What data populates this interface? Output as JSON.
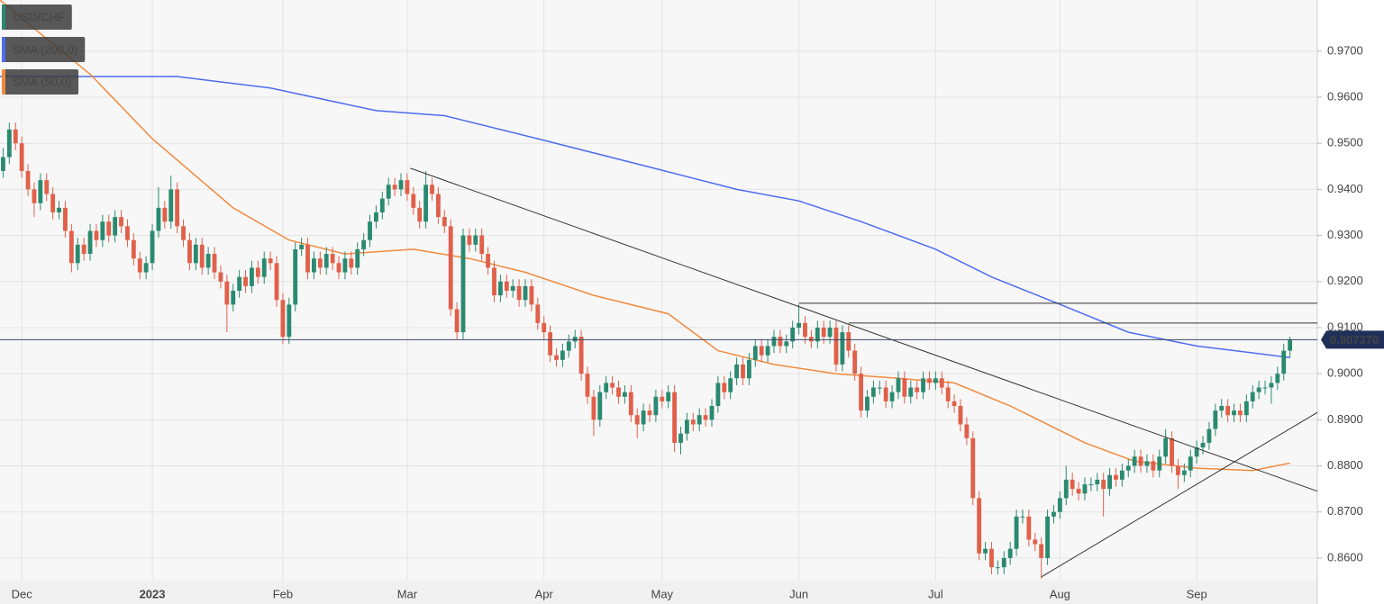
{
  "chart_data": {
    "type": "candlestick",
    "series": [
      {
        "name": "USD/CHF",
        "type": "candlestick",
        "color": "#2a8a70",
        "down_color": "#e0604a",
        "open": [
          0.944,
          0.947,
          0.953,
          0.95,
          0.944,
          0.94,
          0.937,
          0.942,
          0.939,
          0.935,
          0.936,
          0.931,
          0.924,
          0.928,
          0.926,
          0.931,
          0.929,
          0.933,
          0.93,
          0.934,
          0.932,
          0.929,
          0.925,
          0.922,
          0.924,
          0.931,
          0.936,
          0.933,
          0.94,
          0.932,
          0.929,
          0.924,
          0.928,
          0.923,
          0.926,
          0.922,
          0.92,
          0.915,
          0.918,
          0.921,
          0.919,
          0.923,
          0.921,
          0.925,
          0.924,
          0.916,
          0.908,
          0.915,
          0.927,
          0.928,
          0.922,
          0.925,
          0.923,
          0.926,
          0.924,
          0.922,
          0.925,
          0.923,
          0.927,
          0.929,
          0.933,
          0.935,
          0.938,
          0.941,
          0.94,
          0.942,
          0.939,
          0.936,
          0.933,
          0.941,
          0.939,
          0.934,
          0.932,
          0.914,
          0.909,
          0.93,
          0.928,
          0.93,
          0.926,
          0.923,
          0.917,
          0.92,
          0.918,
          0.919,
          0.916,
          0.919,
          0.915,
          0.911,
          0.909,
          0.904,
          0.903,
          0.905,
          0.907,
          0.908,
          0.9,
          0.895,
          0.89,
          0.896,
          0.898,
          0.897,
          0.895,
          0.896,
          0.891,
          0.889,
          0.892,
          0.891,
          0.895,
          0.894,
          0.896,
          0.885,
          0.887,
          0.89,
          0.889,
          0.891,
          0.89,
          0.893,
          0.898,
          0.896,
          0.899,
          0.902,
          0.899,
          0.903,
          0.906,
          0.904,
          0.906,
          0.908,
          0.906,
          0.907,
          0.91,
          0.911,
          0.908,
          0.907,
          0.91,
          0.908,
          0.91,
          0.902,
          0.909,
          0.905,
          0.9,
          0.892,
          0.895,
          0.897,
          0.897,
          0.894,
          0.896,
          0.899,
          0.895,
          0.897,
          0.896,
          0.899,
          0.898,
          0.899,
          0.897,
          0.894,
          0.893,
          0.889,
          0.886,
          0.873,
          0.861,
          0.862,
          0.858,
          0.858,
          0.86,
          0.862,
          0.869,
          0.869,
          0.864,
          0.863,
          0.86,
          0.869,
          0.87,
          0.873,
          0.877,
          0.875,
          0.874,
          0.876,
          0.876,
          0.877,
          0.875,
          0.878,
          0.877,
          0.879,
          0.88,
          0.882,
          0.88,
          0.881,
          0.879,
          0.882,
          0.886,
          0.88,
          0.878,
          0.879,
          0.882,
          0.884,
          0.885,
          0.888,
          0.892,
          0.893,
          0.891,
          0.892,
          0.891,
          0.894,
          0.896,
          0.897,
          0.897,
          0.898,
          0.9,
          0.905
        ],
        "high": [
          0.949,
          0.9545,
          0.9545,
          0.9515,
          0.9455,
          0.9415,
          0.9435,
          0.9435,
          0.9405,
          0.9375,
          0.9375,
          0.9325,
          0.9295,
          0.9295,
          0.9325,
          0.9325,
          0.9345,
          0.9345,
          0.9355,
          0.9355,
          0.9335,
          0.9305,
          0.9265,
          0.9255,
          0.9325,
          0.9405,
          0.9375,
          0.943,
          0.9415,
          0.9335,
          0.9305,
          0.9295,
          0.9295,
          0.9275,
          0.9275,
          0.9235,
          0.9215,
          0.9195,
          0.9225,
          0.9225,
          0.9245,
          0.9245,
          0.9265,
          0.9265,
          0.9255,
          0.9175,
          0.9165,
          0.9285,
          0.9295,
          0.9295,
          0.9265,
          0.9265,
          0.9275,
          0.9275,
          0.9255,
          0.9265,
          0.9265,
          0.9285,
          0.9305,
          0.9345,
          0.9365,
          0.9395,
          0.9425,
          0.9425,
          0.9435,
          0.9435,
          0.9405,
          0.9375,
          0.944,
          0.9425,
          0.9405,
          0.9355,
          0.9335,
          0.9155,
          0.9315,
          0.9315,
          0.9315,
          0.9315,
          0.9275,
          0.9245,
          0.9215,
          0.9215,
          0.9205,
          0.9205,
          0.9205,
          0.9205,
          0.9165,
          0.9125,
          0.9105,
          0.9055,
          0.9065,
          0.9085,
          0.9095,
          0.9095,
          0.9015,
          0.8965,
          0.8975,
          0.8995,
          0.8995,
          0.8985,
          0.8975,
          0.8975,
          0.8925,
          0.8935,
          0.8935,
          0.8965,
          0.8965,
          0.8975,
          0.8975,
          0.8885,
          0.8915,
          0.8915,
          0.8925,
          0.8925,
          0.8945,
          0.8995,
          0.8995,
          0.9005,
          0.9035,
          0.9035,
          0.9045,
          0.9075,
          0.9075,
          0.9075,
          0.9095,
          0.9095,
          0.9085,
          0.9115,
          0.915,
          0.9125,
          0.9095,
          0.9115,
          0.9115,
          0.9115,
          0.9115,
          0.9105,
          0.9105,
          0.9065,
          0.9015,
          0.8965,
          0.8985,
          0.8985,
          0.8985,
          0.8975,
          0.9005,
          0.9005,
          0.8985,
          0.8985,
          0.9005,
          0.9005,
          0.9005,
          0.9005,
          0.8985,
          0.8955,
          0.8945,
          0.8905,
          0.8875,
          0.8745,
          0.8635,
          0.8635,
          0.8595,
          0.8615,
          0.8635,
          0.8705,
          0.8705,
          0.8705,
          0.8655,
          0.8645,
          0.8705,
          0.8715,
          0.8745,
          0.88,
          0.8785,
          0.8765,
          0.8775,
          0.8775,
          0.8785,
          0.8785,
          0.8795,
          0.8795,
          0.8805,
          0.8815,
          0.8835,
          0.8835,
          0.8825,
          0.8825,
          0.8835,
          0.888,
          0.8875,
          0.8815,
          0.8805,
          0.8835,
          0.8855,
          0.8865,
          0.8895,
          0.8935,
          0.8945,
          0.8945,
          0.8935,
          0.8935,
          0.8955,
          0.8975,
          0.8985,
          0.8985,
          0.8995,
          0.9015,
          0.9065,
          0.908
        ],
        "low": [
          0.9425,
          0.9455,
          0.9485,
          0.9425,
          0.9385,
          0.934,
          0.9355,
          0.9375,
          0.9335,
          0.9335,
          0.9295,
          0.922,
          0.9225,
          0.9245,
          0.9245,
          0.9275,
          0.9275,
          0.9285,
          0.9285,
          0.9305,
          0.9275,
          0.9235,
          0.9205,
          0.9205,
          0.9225,
          0.9295,
          0.9315,
          0.9315,
          0.9305,
          0.9275,
          0.9225,
          0.9225,
          0.9215,
          0.9215,
          0.9205,
          0.9185,
          0.909,
          0.9135,
          0.9165,
          0.9175,
          0.9175,
          0.9195,
          0.9195,
          0.9225,
          0.9145,
          0.9065,
          0.9065,
          0.9135,
          0.9255,
          0.9205,
          0.9205,
          0.9215,
          0.9215,
          0.9225,
          0.9205,
          0.9205,
          0.9215,
          0.9215,
          0.9255,
          0.9275,
          0.9315,
          0.9335,
          0.9365,
          0.9385,
          0.9385,
          0.9375,
          0.9345,
          0.9315,
          0.9315,
          0.9375,
          0.9325,
          0.9305,
          0.9125,
          0.9075,
          0.9075,
          0.9265,
          0.9265,
          0.9245,
          0.9215,
          0.9155,
          0.9155,
          0.9165,
          0.9165,
          0.9145,
          0.9145,
          0.9135,
          0.9095,
          0.9075,
          0.9025,
          0.9015,
          0.9015,
          0.9035,
          0.9055,
          0.8985,
          0.8935,
          0.8865,
          0.8885,
          0.8945,
          0.8955,
          0.8935,
          0.8935,
          0.8895,
          0.886,
          0.8875,
          0.8895,
          0.8895,
          0.8925,
          0.8925,
          0.883,
          0.8825,
          0.8855,
          0.8875,
          0.8875,
          0.8885,
          0.8885,
          0.8915,
          0.8945,
          0.8945,
          0.8975,
          0.8975,
          0.8975,
          0.9015,
          0.9025,
          0.9025,
          0.9045,
          0.9045,
          0.9045,
          0.9055,
          0.9085,
          0.9065,
          0.9055,
          0.9055,
          0.9065,
          0.9065,
          0.9005,
          0.9005,
          0.9035,
          0.8985,
          0.8905,
          0.8905,
          0.8935,
          0.8955,
          0.8925,
          0.8925,
          0.8945,
          0.8935,
          0.8935,
          0.8945,
          0.8945,
          0.8965,
          0.8965,
          0.8955,
          0.8925,
          0.8915,
          0.8875,
          0.8845,
          0.8715,
          0.8595,
          0.8595,
          0.8565,
          0.8565,
          0.8565,
          0.8585,
          0.8605,
          0.8675,
          0.8625,
          0.8615,
          0.8555,
          0.8585,
          0.8675,
          0.8685,
          0.8715,
          0.8735,
          0.8725,
          0.8725,
          0.8745,
          0.8745,
          0.869,
          0.8735,
          0.8755,
          0.8755,
          0.8775,
          0.8785,
          0.8785,
          0.8785,
          0.8775,
          0.8775,
          0.8805,
          0.8785,
          0.875,
          0.8765,
          0.8775,
          0.8805,
          0.8825,
          0.8835,
          0.8865,
          0.8905,
          0.8895,
          0.8895,
          0.8895,
          0.8895,
          0.8925,
          0.8945,
          0.8955,
          0.8935,
          0.8965,
          0.8985,
          0.9035
        ],
        "close": [
          0.947,
          0.953,
          0.95,
          0.944,
          0.94,
          0.937,
          0.942,
          0.939,
          0.935,
          0.936,
          0.931,
          0.924,
          0.928,
          0.926,
          0.931,
          0.929,
          0.933,
          0.93,
          0.934,
          0.932,
          0.929,
          0.925,
          0.922,
          0.924,
          0.931,
          0.936,
          0.933,
          0.94,
          0.932,
          0.929,
          0.924,
          0.928,
          0.923,
          0.926,
          0.922,
          0.92,
          0.915,
          0.918,
          0.921,
          0.919,
          0.923,
          0.921,
          0.925,
          0.924,
          0.916,
          0.908,
          0.915,
          0.927,
          0.928,
          0.922,
          0.925,
          0.923,
          0.926,
          0.924,
          0.922,
          0.925,
          0.923,
          0.927,
          0.929,
          0.933,
          0.935,
          0.938,
          0.941,
          0.94,
          0.942,
          0.939,
          0.936,
          0.933,
          0.941,
          0.939,
          0.934,
          0.932,
          0.914,
          0.909,
          0.93,
          0.928,
          0.93,
          0.926,
          0.923,
          0.917,
          0.92,
          0.918,
          0.919,
          0.916,
          0.919,
          0.915,
          0.911,
          0.909,
          0.904,
          0.903,
          0.905,
          0.907,
          0.908,
          0.9,
          0.895,
          0.89,
          0.896,
          0.898,
          0.897,
          0.895,
          0.896,
          0.891,
          0.889,
          0.892,
          0.891,
          0.895,
          0.894,
          0.896,
          0.885,
          0.887,
          0.89,
          0.889,
          0.891,
          0.89,
          0.893,
          0.898,
          0.896,
          0.899,
          0.902,
          0.899,
          0.903,
          0.906,
          0.904,
          0.906,
          0.908,
          0.906,
          0.907,
          0.91,
          0.911,
          0.908,
          0.907,
          0.91,
          0.908,
          0.91,
          0.902,
          0.909,
          0.905,
          0.9,
          0.892,
          0.895,
          0.897,
          0.897,
          0.894,
          0.896,
          0.899,
          0.895,
          0.897,
          0.896,
          0.899,
          0.898,
          0.899,
          0.897,
          0.894,
          0.893,
          0.889,
          0.886,
          0.873,
          0.861,
          0.862,
          0.858,
          0.858,
          0.86,
          0.862,
          0.869,
          0.869,
          0.864,
          0.863,
          0.86,
          0.869,
          0.87,
          0.873,
          0.877,
          0.875,
          0.874,
          0.876,
          0.876,
          0.877,
          0.875,
          0.878,
          0.877,
          0.879,
          0.88,
          0.882,
          0.88,
          0.881,
          0.879,
          0.882,
          0.886,
          0.88,
          0.878,
          0.879,
          0.882,
          0.884,
          0.885,
          0.888,
          0.892,
          0.893,
          0.891,
          0.892,
          0.891,
          0.894,
          0.896,
          0.897,
          0.897,
          0.898,
          0.9,
          0.905,
          0.9074
        ]
      },
      {
        "name": "SMA (200,0)",
        "type": "line",
        "color": "#4d6cf0",
        "x": [
          -0.5,
          28,
          43,
          60,
          71,
          86,
          105,
          118,
          128,
          138,
          150,
          159,
          171,
          181,
          192,
          207
        ],
        "values": [
          0.9645,
          0.9645,
          0.962,
          0.9571,
          0.956,
          0.951,
          0.9445,
          0.94,
          0.9375,
          0.933,
          0.927,
          0.921,
          0.9145,
          0.909,
          0.906,
          0.9035
        ]
      },
      {
        "name": "SMA (50,0)",
        "type": "line",
        "color": "#f08a3e",
        "x": [
          -0.5,
          4,
          14,
          24,
          37,
          46,
          55,
          66,
          75,
          84,
          95,
          107,
          115,
          124,
          134,
          144,
          153,
          162,
          174,
          182,
          192,
          201,
          207
        ],
        "values": [
          0.9811,
          0.976,
          0.965,
          0.951,
          0.936,
          0.929,
          0.926,
          0.927,
          0.925,
          0.922,
          0.917,
          0.913,
          0.905,
          0.902,
          0.9,
          0.899,
          0.898,
          0.893,
          0.885,
          0.881,
          0.8795,
          0.879,
          0.8806
        ]
      }
    ],
    "lines": [
      {
        "x": [
          65.5,
          211.4
        ],
        "y": [
          0.9446,
          0.8745
        ]
      },
      {
        "x": [
          167,
          211.4
        ],
        "y": [
          0.8559,
          0.8916
        ]
      },
      {
        "x": [
          128,
          211.4
        ],
        "y": [
          0.9153,
          0.9153
        ]
      },
      {
        "x": [
          136,
          211.4
        ],
        "y": [
          0.911,
          0.911
        ]
      }
    ],
    "price_line": 0.90737,
    "price_label": "0.907370",
    "xlim": [
      -0.5,
      211.4
    ],
    "ylim": [
      0.8551,
      0.9811
    ],
    "xticks": [
      {
        "value": 3,
        "label": "Dec"
      },
      {
        "value": 24,
        "label": "2023"
      },
      {
        "value": 45,
        "label": "Feb"
      },
      {
        "value": 65,
        "label": "Mar"
      },
      {
        "value": 87,
        "label": "Apr"
      },
      {
        "value": 106,
        "label": "May"
      },
      {
        "value": 128,
        "label": "Jun"
      },
      {
        "value": 150,
        "label": "Jul"
      },
      {
        "value": 170,
        "label": "Aug"
      },
      {
        "value": 192,
        "label": "Sep"
      }
    ],
    "yticks": [
      {
        "value": 0.86,
        "label": "0.8600"
      },
      {
        "value": 0.87,
        "label": "0.8700"
      },
      {
        "value": 0.88,
        "label": "0.8800"
      },
      {
        "value": 0.89,
        "label": "0.8900"
      },
      {
        "value": 0.9,
        "label": "0.9000"
      },
      {
        "value": 0.91,
        "label": "0.9100"
      },
      {
        "value": 0.92,
        "label": "0.9200"
      },
      {
        "value": 0.93,
        "label": "0.9300"
      },
      {
        "value": 0.94,
        "label": "0.9400"
      },
      {
        "value": 0.95,
        "label": "0.9500"
      },
      {
        "value": 0.96,
        "label": "0.9600"
      },
      {
        "value": 0.97,
        "label": "0.9700"
      }
    ],
    "grid": true
  }
}
